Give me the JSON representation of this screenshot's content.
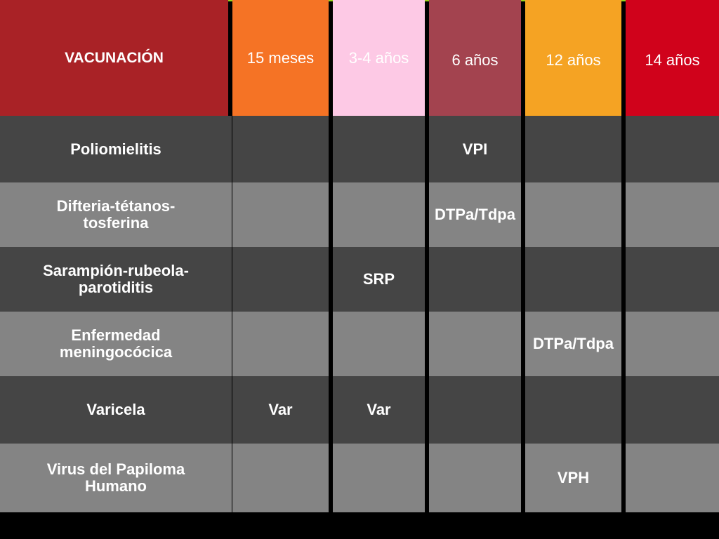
{
  "colors": {
    "header_first": "#a92226",
    "header_15m": "#f57325",
    "header_3_4": "#fdc9e5",
    "header_6": "#a3434f",
    "header_12": "#f5a323",
    "header_14": "#d0021b",
    "row_dark": "#454545",
    "row_light": "#848484",
    "top_accent": "#9bd21a"
  },
  "table": {
    "header": {
      "title": "VACUNACIÓN",
      "columns": [
        "15 meses",
        "3-4 años",
        "6 años",
        "12 años",
        "14 años"
      ]
    },
    "rows": [
      {
        "label": "Poliomielitis",
        "cells": [
          "",
          "",
          "VPI",
          "",
          ""
        ]
      },
      {
        "label": "Difteria-tétanos-\ntosferina",
        "cells": [
          "",
          "",
          "DTPa/Tdpa",
          "",
          ""
        ]
      },
      {
        "label": "Sarampión-rubeola-\nparotiditis",
        "cells": [
          "",
          "SRP",
          "",
          "",
          ""
        ]
      },
      {
        "label": "Enfermedad\nmeningocócica",
        "cells": [
          "",
          "",
          "",
          "DTPa/Tdpa",
          ""
        ]
      },
      {
        "label": "Varicela",
        "cells": [
          "Var",
          "Var",
          "",
          "",
          ""
        ]
      },
      {
        "label": "Virus del Papiloma\nHumano",
        "cells": [
          "",
          "",
          "",
          "VPH",
          ""
        ]
      }
    ]
  }
}
